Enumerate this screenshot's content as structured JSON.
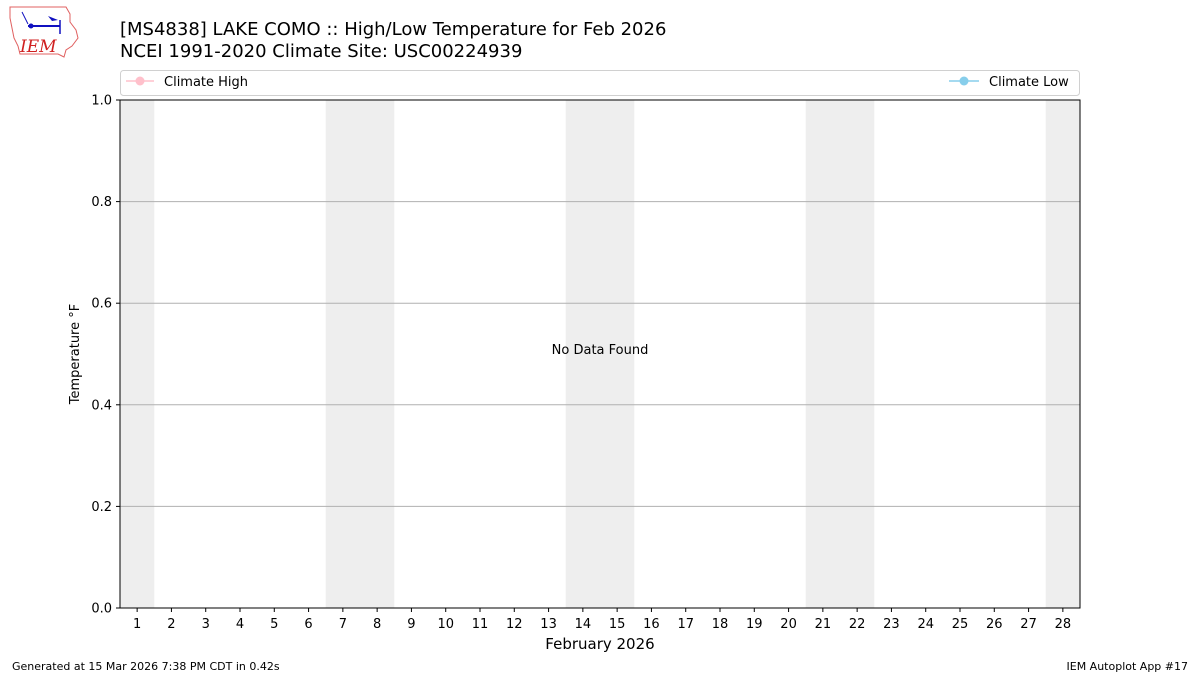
{
  "title_line1": "[MS4838] LAKE COMO :: High/Low Temperature for Feb 2026",
  "title_line2": "NCEI 1991-2020 Climate Site: USC00224939",
  "logo_text": "IEM",
  "footer_left": "Generated at 15 Mar 2026 7:38 PM CDT in 0.42s",
  "footer_right": "IEM Autoplot App #17",
  "chart_data": {
    "type": "line",
    "xlabel": "February 2026",
    "ylabel": "Temperature °F",
    "xlim": [
      0.5,
      28.5
    ],
    "ylim": [
      0.0,
      1.0
    ],
    "x_ticks": [
      1,
      2,
      3,
      4,
      5,
      6,
      7,
      8,
      9,
      10,
      11,
      12,
      13,
      14,
      15,
      16,
      17,
      18,
      19,
      20,
      21,
      22,
      23,
      24,
      25,
      26,
      27,
      28
    ],
    "y_ticks": [
      "0.0",
      "0.2",
      "0.4",
      "0.6",
      "0.8",
      "1.0"
    ],
    "grid": "horizontal",
    "weekend_shading": [
      [
        0.5,
        1.5
      ],
      [
        6.5,
        8.5
      ],
      [
        13.5,
        15.5
      ],
      [
        20.5,
        22.5
      ],
      [
        27.5,
        28.5
      ]
    ],
    "shading_color": "#eeeeee",
    "annotation": "No Data Found",
    "legend_placement": "top",
    "series": [
      {
        "name": "Climate High",
        "color": "#ffc0cb",
        "values": []
      },
      {
        "name": "Climate Low",
        "color": "#87ceeb",
        "values": []
      }
    ]
  }
}
